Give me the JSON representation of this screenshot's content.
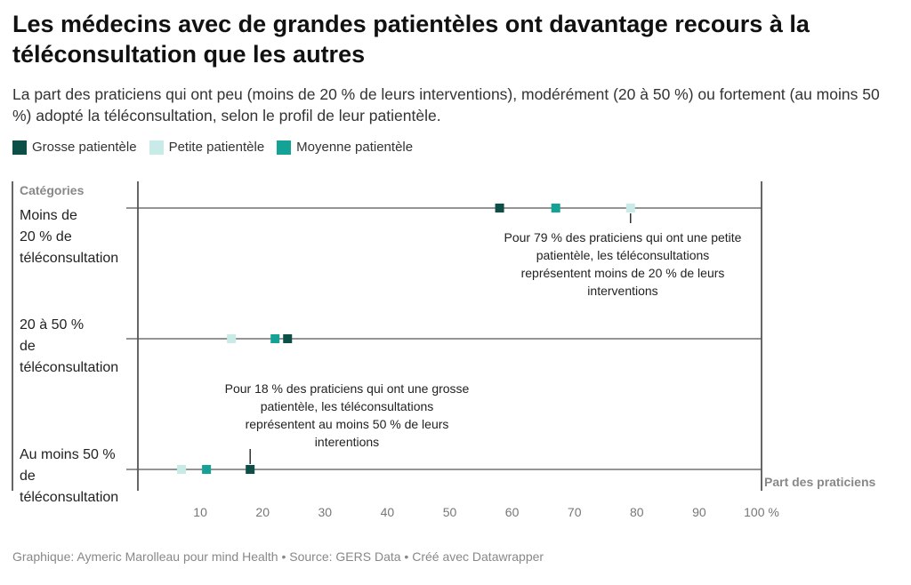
{
  "title": "Les médecins avec de grandes patientèles ont davantage recours à la téléconsultation que les autres",
  "subtitle": "La part des praticiens qui ont peu (moins de 20 % de leurs interventions), modérément (20 à 50 %) ou fortement (au moins 50 %) adopté la téléconsultation, selon le profil de leur patientèle.",
  "legend": [
    {
      "label": "Grosse patientèle",
      "color": "#0b4f47"
    },
    {
      "label": "Petite patientèle",
      "color": "#c9ebe8"
    },
    {
      "label": "Moyenne patientèle",
      "color": "#13a295"
    }
  ],
  "footer": {
    "credit": "Graphique: Aymeric Marolleau pour mind Health",
    "source": "Source: GERS Data",
    "tool": "Créé avec Datawrapper",
    "separator": " • "
  },
  "chart_data": {
    "type": "scatter",
    "ylabel": "Catégories",
    "xlabel": "Part des praticiens",
    "xlim": [
      0,
      100
    ],
    "xticks": [
      "10",
      "20",
      "30",
      "40",
      "50",
      "60",
      "70",
      "80",
      "90",
      "100 %"
    ],
    "categories": [
      [
        "Moins de",
        "20 % de",
        "téléconsultation"
      ],
      [
        "20 à 50 %",
        "de",
        "téléconsultation"
      ],
      [
        "Au moins 50 %",
        "de",
        "téléconsultation"
      ]
    ],
    "series": [
      {
        "name": "Grosse patientèle",
        "color": "#0b4f47",
        "values": [
          58,
          24,
          18
        ]
      },
      {
        "name": "Petite patientèle",
        "color": "#c9ebe8",
        "values": [
          79,
          15,
          7
        ]
      },
      {
        "name": "Moyenne patientèle",
        "color": "#13a295",
        "values": [
          67,
          22,
          11
        ]
      }
    ],
    "annotations": [
      {
        "category": 0,
        "x": 79,
        "lines": [
          "Pour 79 % des praticiens qui ont une petite",
          "patientèle, les téléconsultations",
          "représentent moins de 20 % de leurs",
          "interventions"
        ]
      },
      {
        "category": 2,
        "x": 18,
        "lines": [
          "Pour 18 % des praticiens qui ont une grosse",
          "patientèle, les téléconsultations",
          "représentent au moins 50 % de leurs",
          "interentions"
        ]
      }
    ]
  }
}
